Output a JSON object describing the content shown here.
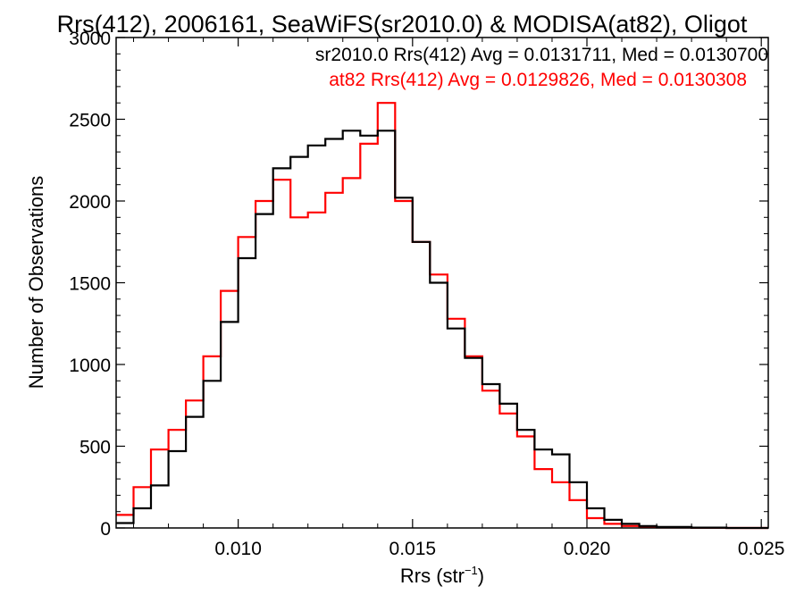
{
  "chart_data": {
    "type": "line",
    "style": "histogram-step",
    "title": "Rrs(412), 2006161, SeaWiFS(sr2010.0) & MODISA(at82), Oligot",
    "xlabel_main": "Rrs (str",
    "xlabel_sup": "−1",
    "xlabel_end": ")",
    "ylabel": "Number of Observations",
    "xlim": [
      0.0065,
      0.0252
    ],
    "ylim": [
      0,
      3000
    ],
    "x_ticks": [
      0.01,
      0.015,
      0.02,
      0.025
    ],
    "x_tick_labels": [
      "0.010",
      "0.015",
      "0.020",
      "0.025"
    ],
    "y_ticks": [
      0,
      500,
      1000,
      1500,
      2000,
      2500,
      3000
    ],
    "y_tick_labels": [
      "0",
      "500",
      "1000",
      "1500",
      "2000",
      "2500",
      "3000"
    ],
    "grid": false,
    "legend_position": "top-right",
    "series": [
      {
        "name": "sr2010.0",
        "legend": "sr2010.0 Rrs(412) Avg = 0.0131711, Med = 0.0130700",
        "color": "#000000",
        "x": [
          0.0065,
          0.007,
          0.0075,
          0.008,
          0.0085,
          0.009,
          0.0095,
          0.01,
          0.0105,
          0.011,
          0.0115,
          0.012,
          0.0125,
          0.013,
          0.0135,
          0.014,
          0.0145,
          0.015,
          0.0155,
          0.016,
          0.0165,
          0.017,
          0.0175,
          0.018,
          0.0185,
          0.019,
          0.0195,
          0.02,
          0.0205,
          0.021,
          0.0215,
          0.022,
          0.023,
          0.024,
          0.0252
        ],
        "y": [
          30,
          120,
          260,
          470,
          680,
          900,
          1260,
          1650,
          1920,
          2200,
          2270,
          2340,
          2380,
          2430,
          2400,
          2430,
          2020,
          1750,
          1500,
          1220,
          1040,
          880,
          760,
          600,
          480,
          450,
          280,
          120,
          50,
          25,
          12,
          6,
          2,
          0,
          0
        ]
      },
      {
        "name": "at82",
        "legend": "at82 Rrs(412) Avg = 0.0129826, Med = 0.0130308",
        "color": "#ff0000",
        "x": [
          0.0065,
          0.007,
          0.0075,
          0.008,
          0.0085,
          0.009,
          0.0095,
          0.01,
          0.0105,
          0.011,
          0.0115,
          0.012,
          0.0125,
          0.013,
          0.0135,
          0.014,
          0.0145,
          0.015,
          0.0155,
          0.016,
          0.0165,
          0.017,
          0.0175,
          0.018,
          0.0185,
          0.019,
          0.0195,
          0.02,
          0.0205,
          0.021,
          0.0215,
          0.022,
          0.023,
          0.024,
          0.0252
        ],
        "y": [
          80,
          250,
          480,
          600,
          780,
          1050,
          1450,
          1780,
          2000,
          2130,
          1900,
          1930,
          2050,
          2140,
          2350,
          2600,
          2000,
          1750,
          1550,
          1280,
          1050,
          840,
          700,
          560,
          360,
          280,
          170,
          60,
          25,
          12,
          6,
          3,
          1,
          0,
          0
        ]
      }
    ]
  }
}
